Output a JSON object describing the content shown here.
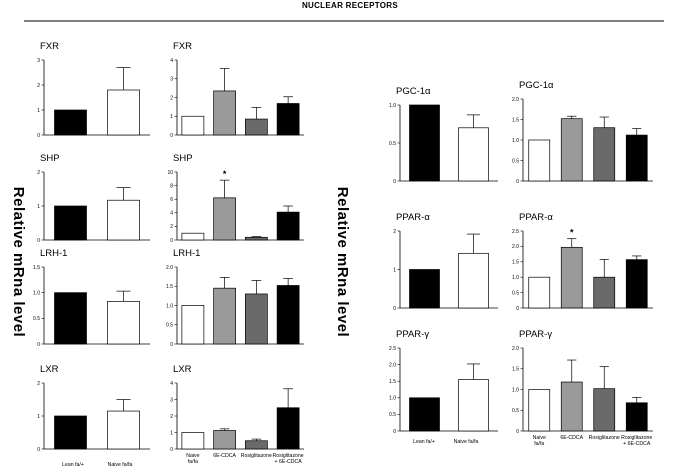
{
  "figure": {
    "title": "NUCLEAR RECEPTORS",
    "ylabel_left": "Relative mRna level",
    "ylabel_right": "Relative mRna level",
    "colors": {
      "black": "#000000",
      "white": "#ffffff",
      "light_gray": "#9a9a9a",
      "dark_gray": "#6a6a6a"
    }
  },
  "groups": {
    "two": [
      "Lean fa/+",
      "Naive fa/fa"
    ],
    "four": [
      "Naive fa/fa",
      "6E-CDCA",
      "Rosiglitazone",
      "Rosiglitazone + 6E-CDCA"
    ]
  },
  "chart_data": [
    {
      "id": "fxr-a",
      "type": "bar",
      "title": "FXR",
      "ylim": [
        0,
        3
      ],
      "yticks": [
        "0",
        "1",
        "2",
        "3"
      ],
      "values": [
        1.0,
        1.8
      ],
      "errors": [
        0,
        0.9
      ],
      "sig": []
    },
    {
      "id": "fxr-b",
      "type": "bar",
      "title": "FXR",
      "ylim": [
        0,
        4
      ],
      "yticks": [
        "0",
        "1",
        "2",
        "3",
        "4"
      ],
      "values": [
        1.0,
        2.35,
        0.85,
        1.68
      ],
      "errors": [
        0,
        1.2,
        0.62,
        0.36
      ],
      "sig": []
    },
    {
      "id": "shp-a",
      "type": "bar",
      "title": "SHP",
      "ylim": [
        0,
        2
      ],
      "yticks": [
        "0",
        "1",
        "2"
      ],
      "values": [
        1.0,
        1.17
      ],
      "errors": [
        0,
        0.37
      ],
      "sig": []
    },
    {
      "id": "shp-b",
      "type": "bar",
      "title": "SHP",
      "ylim": [
        0,
        10
      ],
      "yticks": [
        "0",
        "2",
        "4",
        "6",
        "8",
        "10"
      ],
      "values": [
        1.0,
        6.2,
        0.4,
        4.1
      ],
      "errors": [
        0,
        2.6,
        0.1,
        0.9
      ],
      "sig": [
        1
      ]
    },
    {
      "id": "lrh1-a",
      "type": "bar",
      "title": "LRH-1",
      "ylim": [
        0,
        1.5
      ],
      "yticks": [
        "0",
        "0.5",
        "1.0",
        "1.5"
      ],
      "values": [
        1.0,
        0.83
      ],
      "errors": [
        0,
        0.2
      ],
      "sig": []
    },
    {
      "id": "lrh1-b",
      "type": "bar",
      "title": "LRH-1",
      "ylim": [
        0,
        2.0
      ],
      "yticks": [
        "0",
        "0.5",
        "1.0",
        "1.5",
        "2.0"
      ],
      "values": [
        1.0,
        1.45,
        1.3,
        1.52
      ],
      "errors": [
        0,
        0.28,
        0.35,
        0.18
      ],
      "sig": []
    },
    {
      "id": "lxr-a",
      "type": "bar",
      "title": "LXR",
      "ylim": [
        0,
        2
      ],
      "yticks": [
        "0",
        "1",
        "2"
      ],
      "values": [
        1.0,
        1.15
      ],
      "errors": [
        0,
        0.35
      ],
      "sig": []
    },
    {
      "id": "lxr-b",
      "type": "bar",
      "title": "LXR",
      "ylim": [
        0,
        4
      ],
      "yticks": [
        "0",
        "1",
        "2",
        "3",
        "4"
      ],
      "values": [
        1.0,
        1.12,
        0.5,
        2.5
      ],
      "errors": [
        0,
        0.1,
        0.1,
        1.15
      ],
      "sig": []
    },
    {
      "id": "pgc-a",
      "type": "bar",
      "title": "PGC-1α",
      "ylim": [
        0,
        1.0
      ],
      "yticks": [
        "0",
        "0.5",
        "1.0"
      ],
      "values": [
        1.0,
        0.7
      ],
      "errors": [
        0,
        0.17
      ],
      "sig": []
    },
    {
      "id": "pgc-b",
      "type": "bar",
      "title": "PGC-1α",
      "ylim": [
        0,
        2.0
      ],
      "yticks": [
        "0",
        "0.5",
        "1.0",
        "1.5",
        "2.0"
      ],
      "values": [
        1.0,
        1.52,
        1.3,
        1.12
      ],
      "errors": [
        0,
        0.06,
        0.26,
        0.16
      ],
      "sig": []
    },
    {
      "id": "ppara-a",
      "type": "bar",
      "title": "PPAR-α",
      "ylim": [
        0,
        2
      ],
      "yticks": [
        "0",
        "1",
        "2"
      ],
      "values": [
        1.0,
        1.42
      ],
      "errors": [
        0,
        0.5
      ],
      "sig": []
    },
    {
      "id": "ppara-b",
      "type": "bar",
      "title": "PPAR-α",
      "ylim": [
        0,
        2.5
      ],
      "yticks": [
        "0",
        "0.5",
        "1.0",
        "1.5",
        "2.0",
        "2.5"
      ],
      "values": [
        1.0,
        1.97,
        1.0,
        1.57
      ],
      "errors": [
        0,
        0.28,
        0.58,
        0.12
      ],
      "sig": [
        1
      ]
    },
    {
      "id": "pparg-a",
      "type": "bar",
      "title": "PPAR-γ",
      "ylim": [
        0,
        2.5
      ],
      "yticks": [
        "0",
        "0.5",
        "1.0",
        "1.5",
        "2.0",
        "2.5"
      ],
      "values": [
        1.0,
        1.55
      ],
      "errors": [
        0,
        0.47
      ],
      "sig": []
    },
    {
      "id": "pparg-b",
      "type": "bar",
      "title": "PPAR-γ",
      "ylim": [
        0,
        2.0
      ],
      "yticks": [
        "0",
        "0.5",
        "1.0",
        "1.5",
        "2.0"
      ],
      "values": [
        1.0,
        1.18,
        1.02,
        0.68
      ],
      "errors": [
        0,
        0.53,
        0.53,
        0.13
      ],
      "sig": []
    }
  ]
}
